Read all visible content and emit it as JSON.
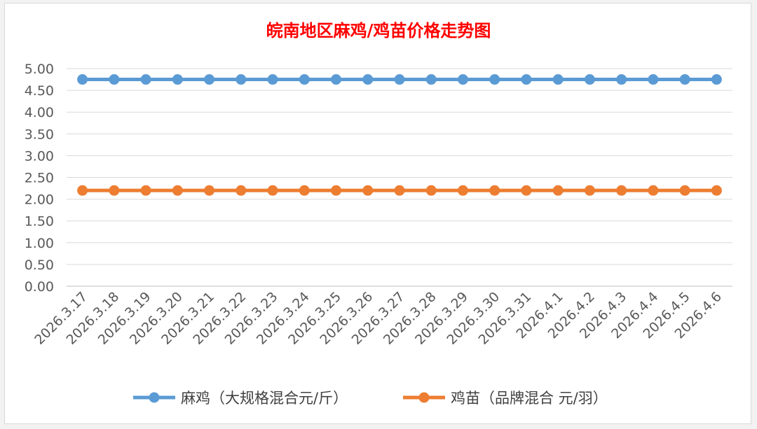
{
  "chart_data": {
    "type": "line",
    "title": "皖南地区麻鸡/鸡苗价格走势图",
    "title_color": "#ff0000",
    "xlabel": "",
    "ylabel": "",
    "ylim": [
      0,
      5
    ],
    "y_ticks": [
      "0.00",
      "0.50",
      "1.00",
      "1.50",
      "2.00",
      "2.50",
      "3.00",
      "3.50",
      "4.00",
      "4.50",
      "5.00"
    ],
    "grid": true,
    "legend_position": "bottom",
    "categories": [
      "2026.3.17",
      "2026.3.18",
      "2026.3.19",
      "2026.3.20",
      "2026.3.21",
      "2026.3.22",
      "2026.3.23",
      "2026.3.24",
      "2026.3.25",
      "2026.3.26",
      "2026.3.27",
      "2026.3.28",
      "2026.3.29",
      "2026.3.30",
      "2026.3.31",
      "2026.4.1",
      "2026.4.2",
      "2026.4.3",
      "2026.4.4",
      "2026.4.5",
      "2026.4.6"
    ],
    "series": [
      {
        "name": "麻鸡（大规格混合元/斤）",
        "color": "#5b9bd5",
        "values": [
          4.75,
          4.75,
          4.75,
          4.75,
          4.75,
          4.75,
          4.75,
          4.75,
          4.75,
          4.75,
          4.75,
          4.75,
          4.75,
          4.75,
          4.75,
          4.75,
          4.75,
          4.75,
          4.75,
          4.75,
          4.75
        ]
      },
      {
        "name": "鸡苗（品牌混合 元/羽）",
        "color": "#ed7d31",
        "values": [
          2.2,
          2.2,
          2.2,
          2.2,
          2.2,
          2.2,
          2.2,
          2.2,
          2.2,
          2.2,
          2.2,
          2.2,
          2.2,
          2.2,
          2.2,
          2.2,
          2.2,
          2.2,
          2.2,
          2.2,
          2.2
        ]
      }
    ]
  }
}
